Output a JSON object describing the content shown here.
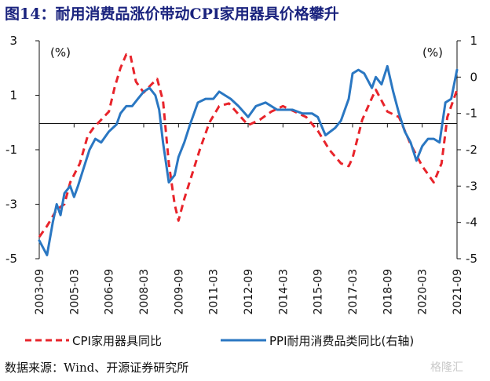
{
  "header": {
    "figure_title": "图14：耐用消费品涨价带动CPI家用器具价格攀升"
  },
  "footer": {
    "source": "数据来源：Wind、开源证券研究所",
    "watermark": "格隆汇"
  },
  "chart_data": {
    "type": "line",
    "left_unit": "(%)",
    "right_unit": "(%)",
    "left_axis": {
      "ylim": [
        -5,
        3
      ],
      "ticks": [
        -5,
        -3,
        -1,
        1,
        3
      ]
    },
    "right_axis": {
      "ylim": [
        -5,
        1
      ],
      "ticks": [
        -5,
        -4,
        -3,
        -2,
        -1,
        0,
        1
      ]
    },
    "x_tick_labels": [
      "2003-09",
      "2005-03",
      "2006-09",
      "2008-03",
      "2009-09",
      "2011-03",
      "2012-09",
      "2014-03",
      "2015-09",
      "2017-03",
      "2018-09",
      "2020-03",
      "2021-09"
    ],
    "x_range": [
      "2003-09",
      "2021-09"
    ],
    "zero_line": true,
    "grid": false,
    "legend_position": "bottom",
    "series": [
      {
        "name": "CPI家用器具同比",
        "axis": "left",
        "color": "#e8242b",
        "style": "dashed",
        "points": [
          [
            "2003-09",
            -4.2
          ],
          [
            "2004-01",
            -3.8
          ],
          [
            "2004-06",
            -3.2
          ],
          [
            "2004-10",
            -3.0
          ],
          [
            "2005-01",
            -2.2
          ],
          [
            "2005-06",
            -1.5
          ],
          [
            "2005-10",
            -0.5
          ],
          [
            "2006-01",
            -0.2
          ],
          [
            "2006-05",
            0.1
          ],
          [
            "2006-09",
            0.4
          ],
          [
            "2006-12",
            1.3
          ],
          [
            "2007-03",
            2.0
          ],
          [
            "2007-06",
            2.5
          ],
          [
            "2007-08",
            2.5
          ],
          [
            "2007-11",
            1.5
          ],
          [
            "2008-03",
            1.1
          ],
          [
            "2008-07",
            1.4
          ],
          [
            "2008-10",
            1.6
          ],
          [
            "2009-01",
            0.8
          ],
          [
            "2009-04",
            -1.5
          ],
          [
            "2009-07",
            -3.0
          ],
          [
            "2009-09",
            -3.6
          ],
          [
            "2009-12",
            -2.8
          ],
          [
            "2010-04",
            -1.9
          ],
          [
            "2010-08",
            -1.0
          ],
          [
            "2011-01",
            0.0
          ],
          [
            "2011-06",
            0.6
          ],
          [
            "2011-11",
            0.7
          ],
          [
            "2012-04",
            0.3
          ],
          [
            "2012-09",
            -0.1
          ],
          [
            "2013-03",
            0.1
          ],
          [
            "2013-09",
            0.4
          ],
          [
            "2014-03",
            0.6
          ],
          [
            "2014-09",
            0.4
          ],
          [
            "2015-03",
            0.2
          ],
          [
            "2015-09",
            -0.3
          ],
          [
            "2016-03",
            -1.0
          ],
          [
            "2016-09",
            -1.5
          ],
          [
            "2017-01",
            -1.6
          ],
          [
            "2017-03",
            -1.3
          ],
          [
            "2017-08",
            0.1
          ],
          [
            "2018-01",
            0.9
          ],
          [
            "2018-03",
            1.2
          ],
          [
            "2018-09",
            0.4
          ],
          [
            "2019-03",
            0.2
          ],
          [
            "2019-09",
            -0.8
          ],
          [
            "2020-03",
            -1.6
          ],
          [
            "2020-09",
            -2.2
          ],
          [
            "2021-01",
            -1.5
          ],
          [
            "2021-04",
            0.2
          ],
          [
            "2021-09",
            1.2
          ]
        ]
      },
      {
        "name": "PPI耐用消费品类同比(右轴)",
        "axis": "right",
        "color": "#2a77c2",
        "style": "solid",
        "points": [
          [
            "2003-09",
            -4.5
          ],
          [
            "2003-11",
            -4.7
          ],
          [
            "2004-01",
            -4.9
          ],
          [
            "2004-04",
            -4.0
          ],
          [
            "2004-06",
            -3.5
          ],
          [
            "2004-08",
            -3.8
          ],
          [
            "2004-10",
            -3.2
          ],
          [
            "2005-01",
            -3.0
          ],
          [
            "2005-03",
            -3.3
          ],
          [
            "2005-05",
            -3.0
          ],
          [
            "2005-08",
            -2.5
          ],
          [
            "2005-11",
            -2.0
          ],
          [
            "2006-02",
            -1.7
          ],
          [
            "2006-05",
            -1.8
          ],
          [
            "2006-09",
            -1.5
          ],
          [
            "2007-01",
            -1.3
          ],
          [
            "2007-03",
            -1.0
          ],
          [
            "2007-06",
            -0.8
          ],
          [
            "2007-09",
            -0.8
          ],
          [
            "2007-12",
            -0.6
          ],
          [
            "2008-03",
            -0.4
          ],
          [
            "2008-06",
            -0.3
          ],
          [
            "2008-09",
            -0.5
          ],
          [
            "2008-11",
            -0.9
          ],
          [
            "2009-01",
            -1.8
          ],
          [
            "2009-04",
            -2.9
          ],
          [
            "2009-07",
            -2.7
          ],
          [
            "2009-09",
            -2.2
          ],
          [
            "2009-12",
            -1.8
          ],
          [
            "2010-03",
            -1.3
          ],
          [
            "2010-07",
            -0.7
          ],
          [
            "2010-11",
            -0.6
          ],
          [
            "2011-03",
            -0.6
          ],
          [
            "2011-06",
            -0.4
          ],
          [
            "2011-09",
            -0.5
          ],
          [
            "2011-12",
            -0.6
          ],
          [
            "2012-04",
            -0.8
          ],
          [
            "2012-09",
            -1.1
          ],
          [
            "2013-01",
            -0.8
          ],
          [
            "2013-06",
            -0.7
          ],
          [
            "2013-12",
            -0.9
          ],
          [
            "2014-03",
            -0.9
          ],
          [
            "2014-08",
            -0.9
          ],
          [
            "2015-01",
            -1.0
          ],
          [
            "2015-06",
            -1.0
          ],
          [
            "2015-09",
            -1.1
          ],
          [
            "2016-01",
            -1.6
          ],
          [
            "2016-06",
            -1.4
          ],
          [
            "2016-09",
            -1.2
          ],
          [
            "2017-01",
            -0.6
          ],
          [
            "2017-03",
            0.1
          ],
          [
            "2017-06",
            0.2
          ],
          [
            "2017-09",
            0.1
          ],
          [
            "2018-01",
            -0.3
          ],
          [
            "2018-03",
            0.0
          ],
          [
            "2018-06",
            -0.2
          ],
          [
            "2018-09",
            0.3
          ],
          [
            "2018-12",
            -0.4
          ],
          [
            "2019-03",
            -1.0
          ],
          [
            "2019-06",
            -1.5
          ],
          [
            "2019-09",
            -1.8
          ],
          [
            "2019-12",
            -2.3
          ],
          [
            "2020-03",
            -1.9
          ],
          [
            "2020-06",
            -1.7
          ],
          [
            "2020-09",
            -1.7
          ],
          [
            "2020-12",
            -1.8
          ],
          [
            "2021-03",
            -0.7
          ],
          [
            "2021-06",
            -0.6
          ],
          [
            "2021-09",
            0.2
          ]
        ]
      }
    ]
  }
}
